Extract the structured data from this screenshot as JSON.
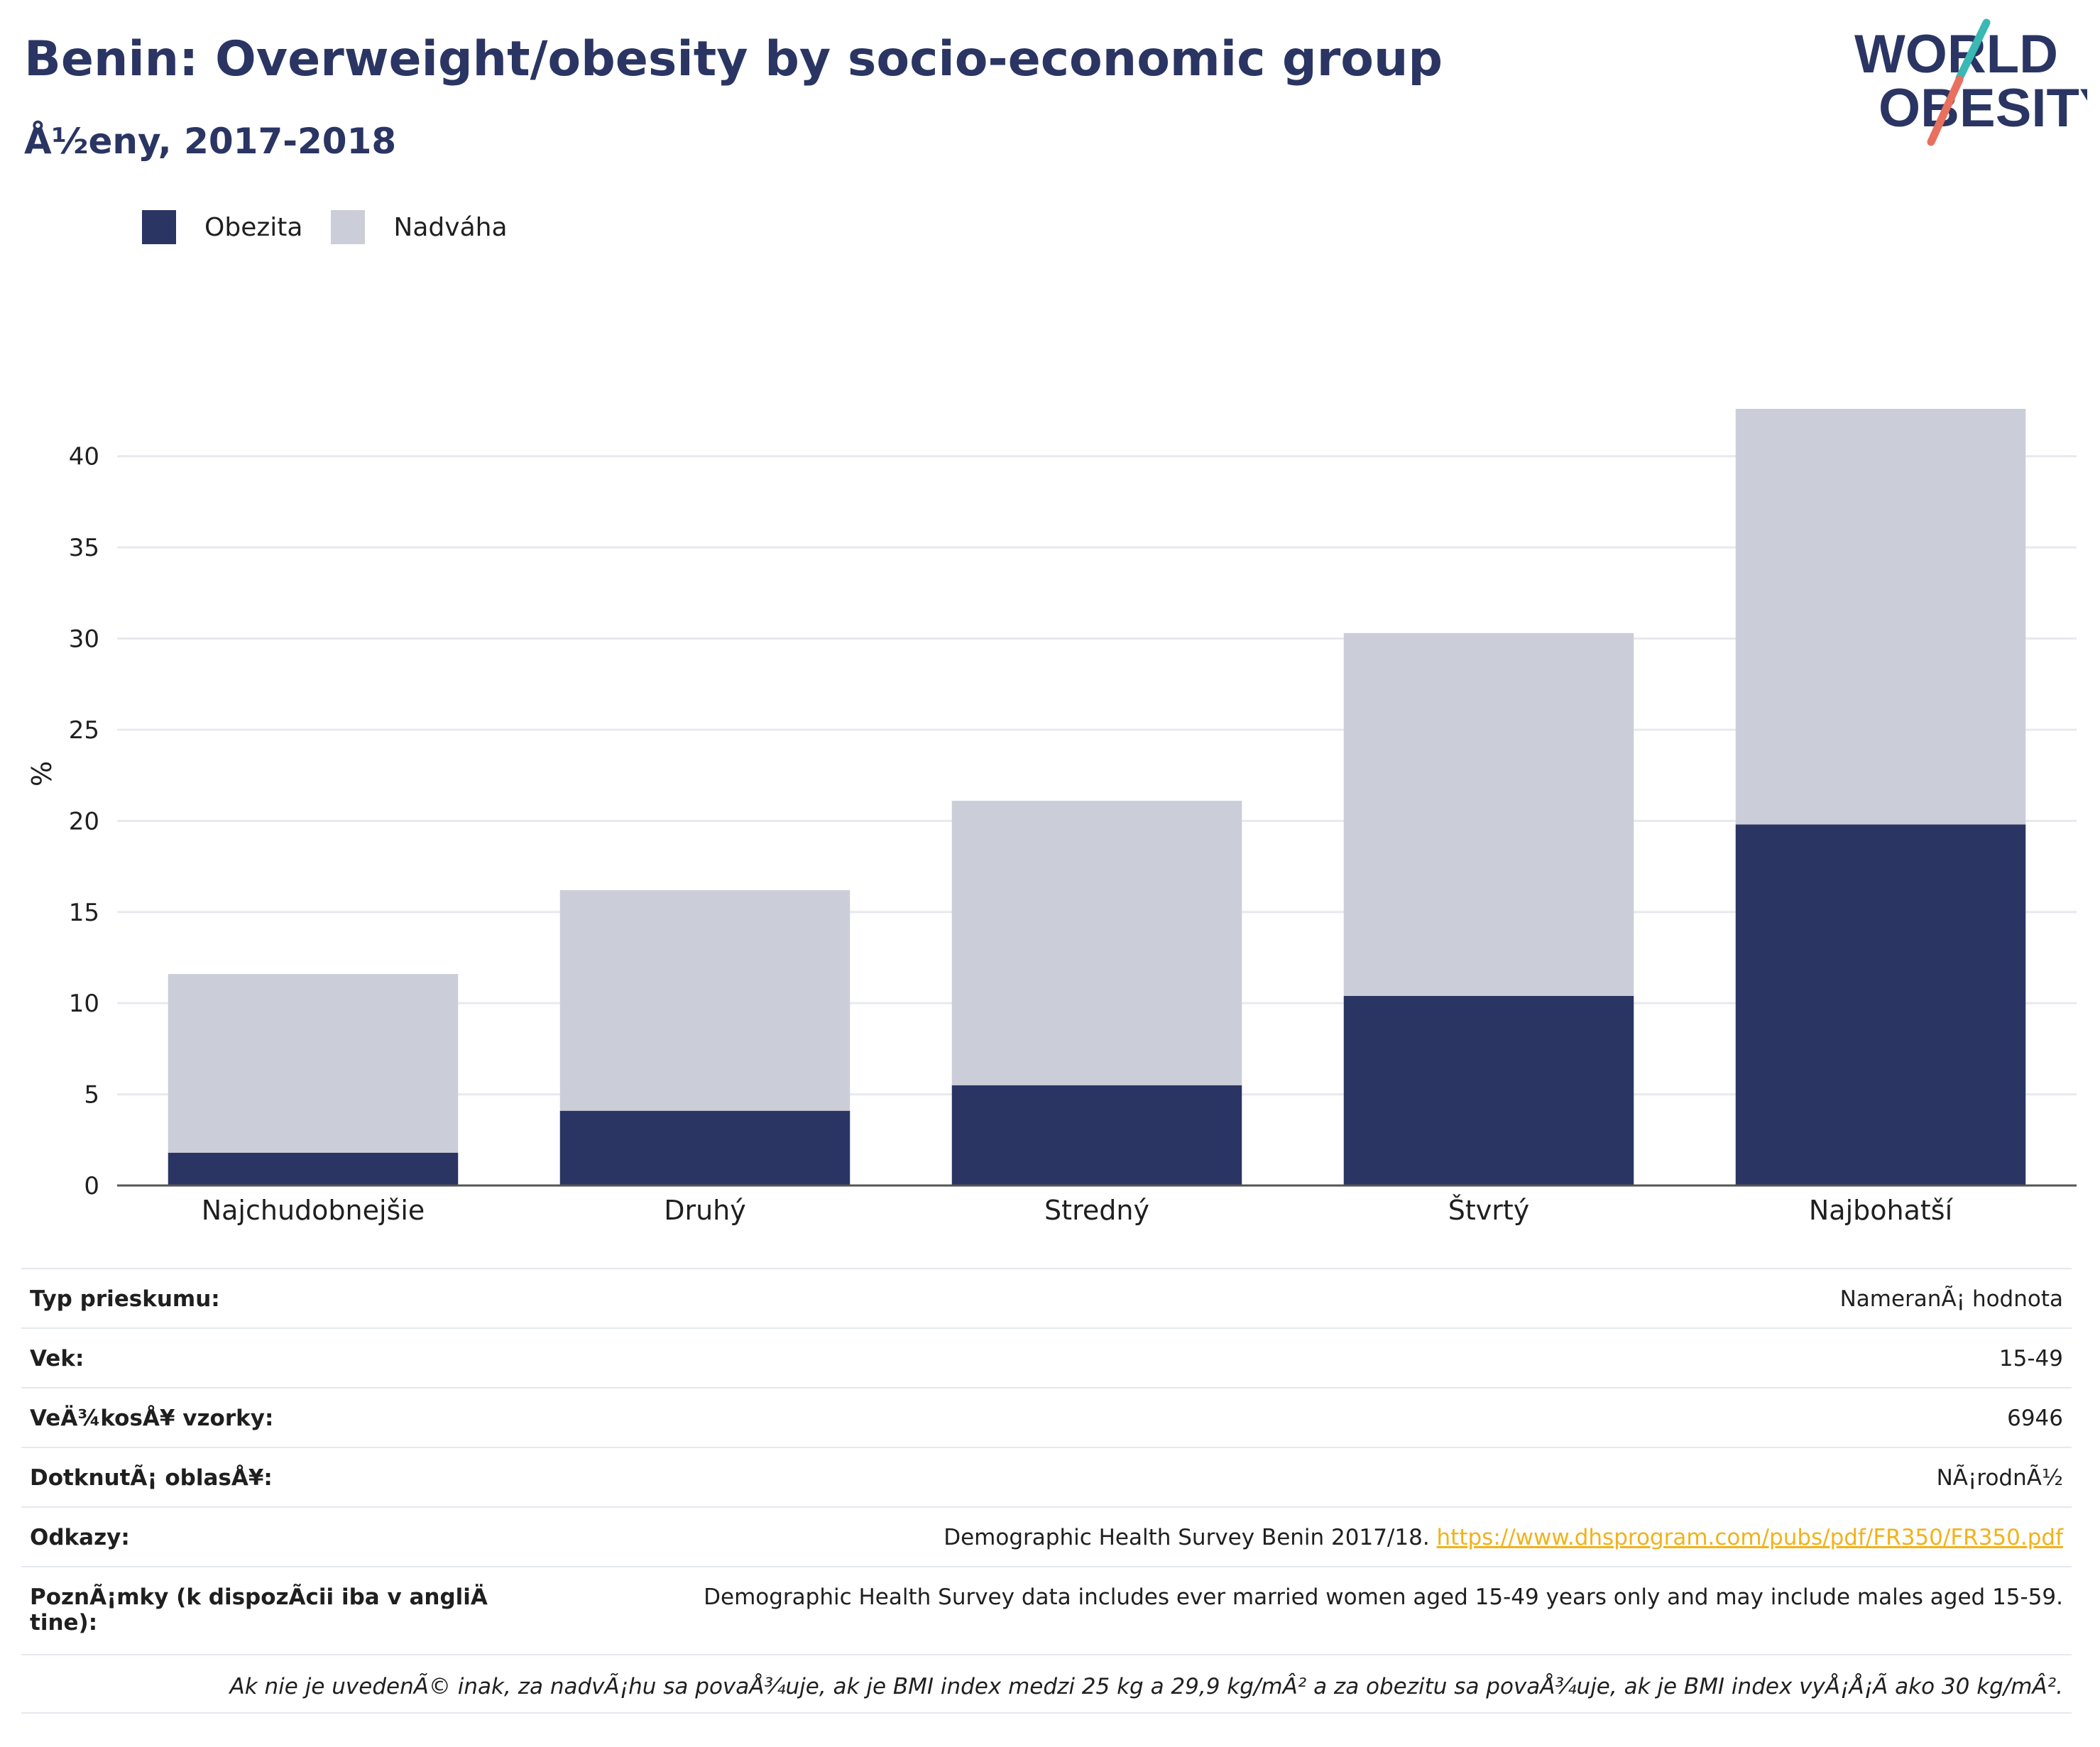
{
  "header": {
    "title": "Benin: Overweight/obesity by socio-economic group",
    "subtitle": "Å½eny, 2017-2018"
  },
  "logo": {
    "line1": "WORLD",
    "line2": "OBESITY",
    "accent_teal": "#3ab8b4",
    "accent_coral": "#e8705e"
  },
  "colors": {
    "obesity": "#2a3563",
    "overweight": "#cbcdd8",
    "axis_text": "#1f1f1f",
    "grid": "#e8e9ef",
    "link": "#f2b21a"
  },
  "chart_data": {
    "type": "bar",
    "stacked": true,
    "categories": [
      "Najchudobnejšie",
      "Druhý",
      "Stredný",
      "Štvrtý",
      "Najbohatší"
    ],
    "series": [
      {
        "name": "Obezita",
        "values": [
          1.8,
          4.1,
          5.5,
          10.4,
          19.8
        ]
      },
      {
        "name": "Nadváha",
        "values": [
          9.8,
          12.1,
          15.6,
          19.9,
          22.8
        ]
      }
    ],
    "yticks": [
      0,
      5,
      10,
      15,
      20,
      25,
      30,
      35,
      40
    ],
    "ylabel": "%",
    "ylim": [
      0,
      44
    ],
    "grid": true,
    "legend_position": "top-left"
  },
  "info": {
    "rows": [
      {
        "label": "Typ prieskumu:",
        "value": "NameranÃ¡ hodnota"
      },
      {
        "label": "Vek:",
        "value": "15-49"
      },
      {
        "label": "VeÄ¾kosÅ¥ vzorky:",
        "value": "6946"
      },
      {
        "label": "DotknutÃ¡ oblasÅ¥:",
        "value": "NÃ¡rodnÃ½"
      }
    ],
    "references_label": "Odkazy:",
    "references_text": "Demographic Health Survey Benin 2017/18.",
    "references_link": "https://www.dhsprogram.com/pubs/pdf/FR350/FR350.pdf",
    "notes_label": "PoznÃ¡mky (k dispozÃcii iba v angliÄ tine):",
    "notes_value": "Demographic Health Survey data includes ever married women aged 15-49 years only and may include males aged 15-59.",
    "definition_note": "Ak nie je uvedenÃ© inak, za nadvÃ¡hu sa povaÅ¾uje, ak je BMI index medzi 25 kg a 29,9 kg/mÂ² a za obezitu sa povaÅ¾uje, ak je BMI index vyÅ¡Å¡Ã ako 30 kg/mÂ²."
  }
}
